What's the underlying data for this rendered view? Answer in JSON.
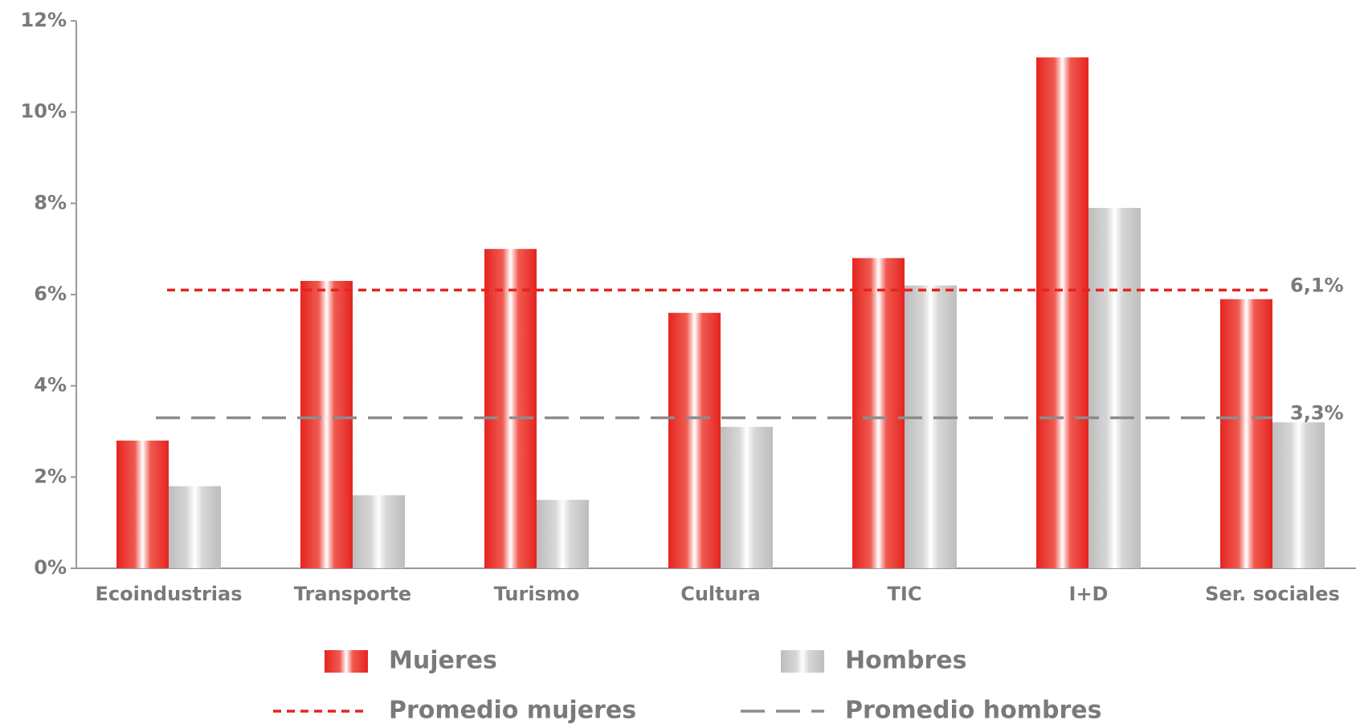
{
  "chart_data": {
    "type": "bar",
    "categories": [
      "Ecoindustrias",
      "Transporte",
      "Turismo",
      "Cultura",
      "TIC",
      "I+D",
      "Ser. sociales"
    ],
    "series": [
      {
        "name": "Mujeres",
        "color": "#e52421",
        "values": [
          2.8,
          6.3,
          7.0,
          5.6,
          6.8,
          11.2,
          5.9
        ]
      },
      {
        "name": "Hombres",
        "color": "#bdbdbd",
        "values": [
          1.8,
          1.6,
          1.5,
          3.1,
          6.2,
          7.9,
          3.2
        ]
      }
    ],
    "averages": [
      {
        "name": "Promedio mujeres",
        "value": 6.1,
        "label": "6,1%",
        "color": "#e52421"
      },
      {
        "name": "Promedio hombres",
        "value": 3.3,
        "label": "3,3%",
        "color": "#8c8c8c"
      }
    ],
    "ylim": [
      0,
      12
    ],
    "yticks": [
      {
        "value": 0,
        "label": "0%"
      },
      {
        "value": 2,
        "label": "2%"
      },
      {
        "value": 4,
        "label": "4%"
      },
      {
        "value": 6,
        "label": "6%"
      },
      {
        "value": 8,
        "label": "8%"
      },
      {
        "value": 10,
        "label": "10%"
      },
      {
        "value": 12,
        "label": "12%"
      }
    ]
  }
}
